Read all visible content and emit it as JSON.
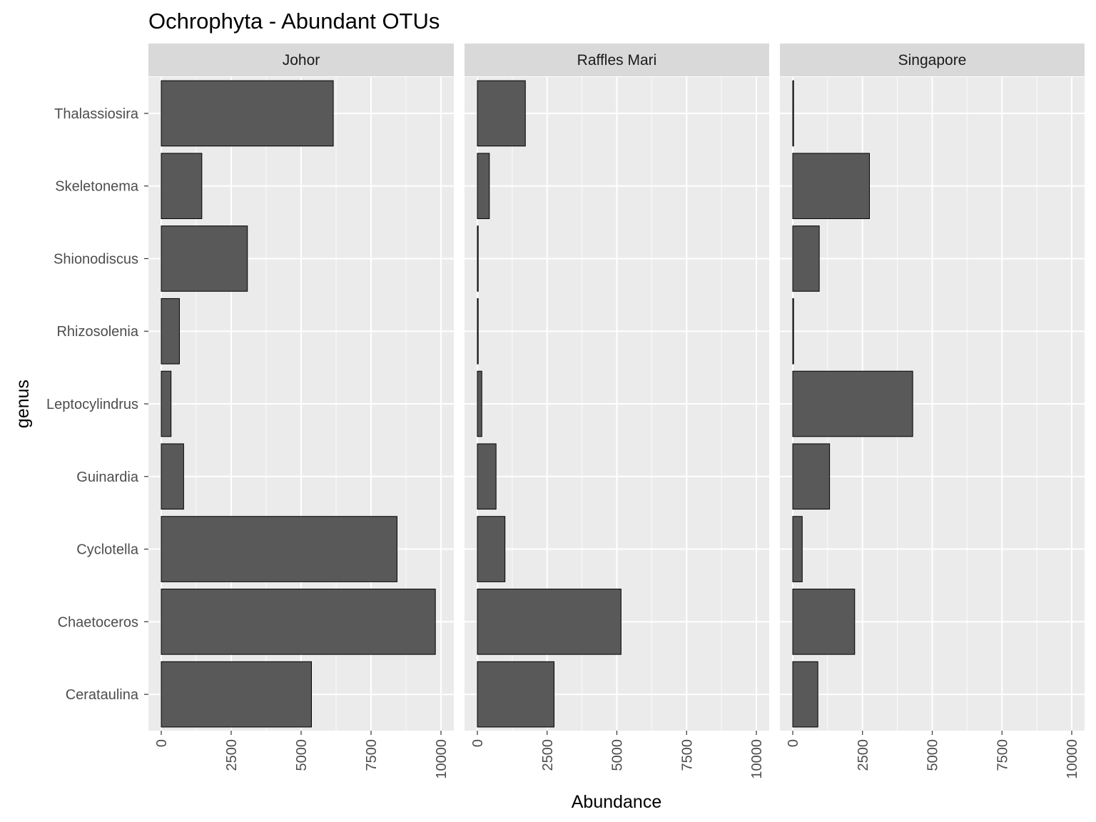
{
  "chart_data": {
    "type": "bar",
    "orientation": "horizontal",
    "title": "Ochrophyta - Abundant OTUs",
    "xlabel": "Abundance",
    "ylabel": "genus",
    "xlim": [
      0,
      10000
    ],
    "x_ticks": [
      "0",
      "2500",
      "5000",
      "7500",
      "10000"
    ],
    "categories": [
      "Thalassiosira",
      "Skeletonema",
      "Shionodiscus",
      "Rhizosolenia",
      "Leptocylindrus",
      "Guinardia",
      "Cyclotella",
      "Chaetoceros",
      "Cerataulina"
    ],
    "grid": true,
    "colors": {
      "bar_fill": "#595959",
      "bar_stroke": "#000000",
      "panel_bg": "#ebebeb",
      "strip_bg": "#d9d9d9",
      "grid": "#ffffff"
    },
    "facets": [
      {
        "name": "Johor",
        "values": [
          6150,
          1450,
          3080,
          650,
          350,
          800,
          8430,
          9800,
          5370
        ]
      },
      {
        "name": "Raffles Mari",
        "values": [
          1720,
          430,
          30,
          30,
          160,
          670,
          990,
          5150,
          2750
        ]
      },
      {
        "name": "Singapore",
        "values": [
          30,
          2750,
          950,
          30,
          4300,
          1320,
          340,
          2220,
          900
        ]
      }
    ]
  }
}
